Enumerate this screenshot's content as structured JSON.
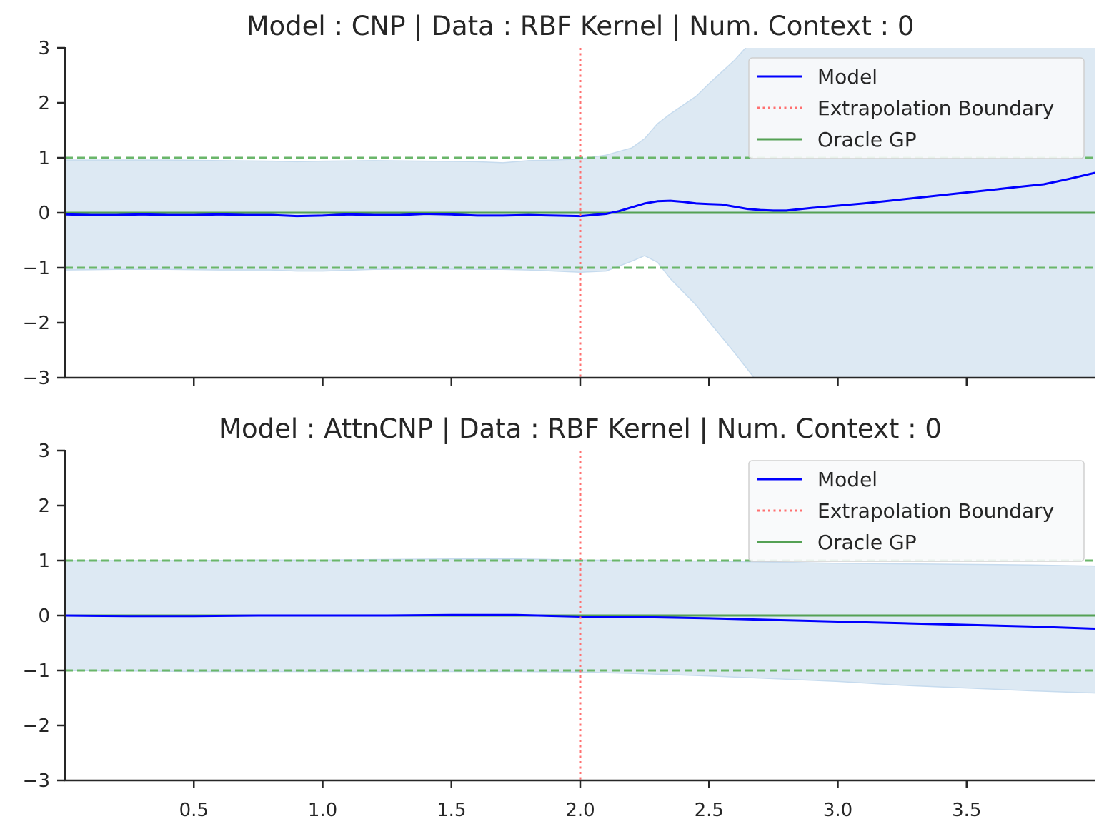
{
  "chart_data": [
    {
      "type": "line",
      "title": "Model : CNP | Data : RBF Kernel | Num. Context : 0",
      "xlabel": "",
      "ylabel": "",
      "xlim": [
        0.0,
        4.0
      ],
      "ylim": [
        -3,
        3
      ],
      "xticks": [
        0.5,
        1.0,
        1.5,
        2.0,
        2.5,
        3.0,
        3.5
      ],
      "xtick_labels_visible": false,
      "yticks": [
        -3,
        -2,
        -1,
        0,
        1,
        2,
        3
      ],
      "ytick_labels": [
        "−3",
        "−2",
        "−1",
        "0",
        "1",
        "2",
        "3"
      ],
      "grid": false,
      "legend": {
        "position": "top-right",
        "entries": [
          "Model",
          "Extrapolation Boundary",
          "Oracle GP"
        ]
      },
      "extrapolation_boundary_x": 2.0,
      "oracle_gp": {
        "mean": 0,
        "upper": 1,
        "lower": -1
      },
      "series": [
        {
          "name": "Model",
          "x": [
            0.0,
            0.1,
            0.2,
            0.3,
            0.4,
            0.5,
            0.6,
            0.7,
            0.8,
            0.9,
            1.0,
            1.1,
            1.2,
            1.3,
            1.4,
            1.5,
            1.6,
            1.7,
            1.8,
            1.9,
            2.0,
            2.1,
            2.15,
            2.2,
            2.25,
            2.3,
            2.35,
            2.4,
            2.45,
            2.5,
            2.55,
            2.6,
            2.65,
            2.7,
            2.75,
            2.8,
            2.9,
            3.0,
            3.1,
            3.2,
            3.3,
            3.4,
            3.5,
            3.6,
            3.7,
            3.8,
            3.9,
            4.0
          ],
          "y": [
            -0.03,
            -0.04,
            -0.04,
            -0.03,
            -0.04,
            -0.04,
            -0.03,
            -0.04,
            -0.04,
            -0.06,
            -0.05,
            -0.03,
            -0.04,
            -0.04,
            -0.02,
            -0.03,
            -0.05,
            -0.05,
            -0.04,
            -0.05,
            -0.06,
            -0.02,
            0.03,
            0.1,
            0.17,
            0.21,
            0.22,
            0.2,
            0.17,
            0.16,
            0.15,
            0.11,
            0.07,
            0.05,
            0.04,
            0.04,
            0.09,
            0.13,
            0.17,
            0.22,
            0.27,
            0.32,
            0.37,
            0.42,
            0.47,
            0.52,
            0.62,
            0.73
          ]
        },
        {
          "name": "Model uncertainty",
          "x": [
            0.0,
            0.2,
            0.4,
            0.6,
            0.8,
            0.9,
            1.0,
            1.2,
            1.4,
            1.6,
            1.7,
            1.8,
            1.9,
            2.0,
            2.1,
            2.2,
            2.25,
            2.3,
            2.35,
            2.45,
            2.5,
            2.6,
            2.7,
            2.75,
            2.8,
            2.9,
            3.0,
            3.2,
            3.4,
            3.6,
            3.8,
            4.0
          ],
          "upper": [
            0.96,
            0.96,
            0.96,
            0.95,
            0.94,
            0.93,
            0.94,
            0.95,
            0.94,
            0.93,
            0.91,
            0.95,
            0.96,
            0.98,
            1.05,
            1.18,
            1.35,
            1.62,
            1.8,
            2.12,
            2.35,
            2.78,
            3.3,
            3.6,
            3.9,
            4.5,
            5.0,
            5.8,
            6.5,
            7.2,
            7.8,
            8.4
          ],
          "lower": [
            -1.04,
            -1.03,
            -1.03,
            -1.04,
            -1.04,
            -1.06,
            -1.06,
            -1.03,
            -1.02,
            -1.03,
            -1.03,
            -1.04,
            -1.06,
            -1.08,
            -1.06,
            -0.88,
            -0.78,
            -0.9,
            -1.2,
            -1.68,
            -1.98,
            -2.55,
            -3.15,
            -3.5,
            -3.9,
            -4.5,
            -5.1,
            -5.9,
            -6.6,
            -7.2,
            -7.8,
            -8.3
          ]
        }
      ]
    },
    {
      "type": "line",
      "title": "Model : AttnCNP | Data : RBF Kernel | Num. Context : 0",
      "xlabel": "",
      "ylabel": "",
      "xlim": [
        0.0,
        4.0
      ],
      "ylim": [
        -3,
        3
      ],
      "xticks": [
        0.5,
        1.0,
        1.5,
        2.0,
        2.5,
        3.0,
        3.5
      ],
      "xtick_labels": [
        "0.5",
        "1.0",
        "1.5",
        "2.0",
        "2.5",
        "3.0",
        "3.5"
      ],
      "yticks": [
        -3,
        -2,
        -1,
        0,
        1,
        2,
        3
      ],
      "ytick_labels": [
        "−3",
        "−2",
        "−1",
        "0",
        "1",
        "2",
        "3"
      ],
      "grid": false,
      "legend": {
        "position": "top-right",
        "entries": [
          "Model",
          "Extrapolation Boundary",
          "Oracle GP"
        ]
      },
      "extrapolation_boundary_x": 2.0,
      "oracle_gp": {
        "mean": 0,
        "upper": 1,
        "lower": -1
      },
      "series": [
        {
          "name": "Model",
          "x": [
            0.0,
            0.25,
            0.5,
            0.75,
            1.0,
            1.25,
            1.5,
            1.75,
            2.0,
            2.25,
            2.5,
            2.75,
            3.0,
            3.25,
            3.5,
            3.75,
            4.0
          ],
          "y": [
            0.0,
            -0.01,
            -0.01,
            0.0,
            0.0,
            0.0,
            0.01,
            0.01,
            -0.02,
            -0.03,
            -0.05,
            -0.08,
            -0.11,
            -0.14,
            -0.17,
            -0.2,
            -0.24
          ]
        },
        {
          "name": "Model uncertainty",
          "x": [
            0.0,
            0.25,
            0.5,
            0.75,
            1.0,
            1.25,
            1.5,
            1.75,
            2.0,
            2.25,
            2.5,
            2.75,
            3.0,
            3.25,
            3.5,
            3.75,
            4.0
          ],
          "upper": [
            1.0,
            1.0,
            1.0,
            1.01,
            1.01,
            1.02,
            1.03,
            1.03,
            1.01,
            1.0,
            0.99,
            0.97,
            0.95,
            0.94,
            0.93,
            0.92,
            0.9
          ],
          "lower": [
            -1.0,
            -1.01,
            -1.02,
            -1.02,
            -1.02,
            -1.02,
            -1.02,
            -1.02,
            -1.03,
            -1.06,
            -1.1,
            -1.15,
            -1.2,
            -1.27,
            -1.32,
            -1.37,
            -1.41
          ]
        }
      ]
    }
  ],
  "colors": {
    "model": "#0000ff",
    "uncertainty_fill": "#dde9f3",
    "uncertainty_edge": "#c6dbee",
    "oracle": "#54a154",
    "oracle_band": "#6ab66a",
    "boundary": "#ff7070",
    "axis": "#262626"
  }
}
